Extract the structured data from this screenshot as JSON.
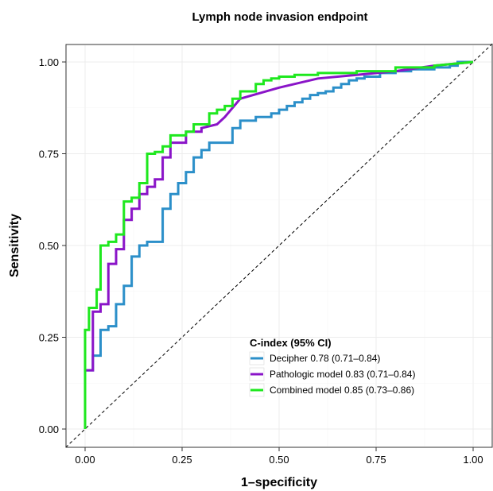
{
  "chart_data": {
    "type": "line",
    "title": "Lymph node invasion endpoint",
    "xlabel": "1–specificity",
    "ylabel": "Sensitivity",
    "xlim": [
      0,
      1
    ],
    "ylim": [
      0,
      1
    ],
    "x_ticks": [
      0,
      0.25,
      0.5,
      0.75,
      1.0
    ],
    "x_tick_labels": [
      "0.00",
      "0.25",
      "0.50",
      "0.75",
      "1.00"
    ],
    "y_ticks": [
      0,
      0.25,
      0.5,
      0.75,
      1.0
    ],
    "y_tick_labels": [
      "0.00",
      "0.25",
      "0.50",
      "0.75",
      "1.00"
    ],
    "grid": true,
    "legend": {
      "title": "C-index (95% CI)",
      "position": "bottom-right"
    },
    "reference_line": {
      "x": [
        0,
        1
      ],
      "y": [
        0,
        1
      ],
      "style": "dashed",
      "color": "#000000"
    },
    "series": [
      {
        "name": "Decipher 0.78 (0.71–0.84)",
        "color": "#2b8fc9",
        "x": [
          0,
          0,
          0.02,
          0.02,
          0.04,
          0.04,
          0.06,
          0.06,
          0.08,
          0.08,
          0.1,
          0.1,
          0.12,
          0.12,
          0.14,
          0.14,
          0.16,
          0.16,
          0.2,
          0.2,
          0.22,
          0.22,
          0.24,
          0.24,
          0.26,
          0.26,
          0.28,
          0.28,
          0.3,
          0.3,
          0.32,
          0.32,
          0.34,
          0.34,
          0.38,
          0.38,
          0.4,
          0.4,
          0.44,
          0.44,
          0.48,
          0.48,
          0.5,
          0.5,
          0.52,
          0.52,
          0.54,
          0.54,
          0.56,
          0.56,
          0.58,
          0.58,
          0.6,
          0.6,
          0.62,
          0.62,
          0.64,
          0.64,
          0.66,
          0.66,
          0.68,
          0.68,
          0.7,
          0.7,
          0.72,
          0.72,
          0.76,
          0.76,
          0.8,
          0.8,
          0.84,
          0.84,
          0.9,
          0.9,
          0.94,
          0.94,
          0.96,
          0.96,
          1.0
        ],
        "y": [
          0,
          0.16,
          0.16,
          0.2,
          0.2,
          0.27,
          0.27,
          0.28,
          0.28,
          0.34,
          0.34,
          0.39,
          0.39,
          0.47,
          0.47,
          0.5,
          0.5,
          0.51,
          0.51,
          0.6,
          0.6,
          0.64,
          0.64,
          0.67,
          0.67,
          0.7,
          0.7,
          0.74,
          0.74,
          0.76,
          0.76,
          0.78,
          0.78,
          0.78,
          0.78,
          0.82,
          0.82,
          0.84,
          0.84,
          0.85,
          0.85,
          0.86,
          0.86,
          0.87,
          0.87,
          0.88,
          0.88,
          0.89,
          0.89,
          0.9,
          0.9,
          0.91,
          0.91,
          0.915,
          0.915,
          0.92,
          0.92,
          0.93,
          0.93,
          0.94,
          0.94,
          0.95,
          0.95,
          0.955,
          0.955,
          0.96,
          0.96,
          0.97,
          0.97,
          0.975,
          0.975,
          0.98,
          0.98,
          0.985,
          0.985,
          0.99,
          0.99,
          1.0,
          1.0
        ]
      },
      {
        "name": "Pathologic model 0.83 (0.71–0.84)",
        "color": "#8a14c8",
        "x": [
          0,
          0,
          0.02,
          0.02,
          0.04,
          0.04,
          0.06,
          0.06,
          0.08,
          0.08,
          0.1,
          0.1,
          0.12,
          0.12,
          0.14,
          0.14,
          0.16,
          0.16,
          0.18,
          0.18,
          0.2,
          0.2,
          0.22,
          0.22,
          0.26,
          0.26,
          0.3,
          0.3,
          0.34,
          0.36,
          0.4,
          0.5,
          0.6,
          0.7,
          0.8,
          0.9,
          1.0
        ],
        "y": [
          0,
          0.16,
          0.16,
          0.32,
          0.32,
          0.34,
          0.34,
          0.45,
          0.45,
          0.49,
          0.49,
          0.57,
          0.57,
          0.6,
          0.6,
          0.64,
          0.64,
          0.66,
          0.66,
          0.68,
          0.68,
          0.74,
          0.74,
          0.78,
          0.78,
          0.81,
          0.81,
          0.82,
          0.83,
          0.85,
          0.9,
          0.93,
          0.955,
          0.965,
          0.975,
          0.99,
          1.0
        ]
      },
      {
        "name": "Combined model 0.85 (0.73–0.86)",
        "color": "#1ee81e",
        "x": [
          0,
          0,
          0.01,
          0.01,
          0.03,
          0.03,
          0.04,
          0.04,
          0.06,
          0.06,
          0.08,
          0.08,
          0.1,
          0.1,
          0.12,
          0.12,
          0.14,
          0.14,
          0.16,
          0.16,
          0.18,
          0.18,
          0.2,
          0.2,
          0.22,
          0.22,
          0.26,
          0.26,
          0.28,
          0.28,
          0.32,
          0.32,
          0.34,
          0.34,
          0.36,
          0.36,
          0.38,
          0.38,
          0.4,
          0.4,
          0.44,
          0.44,
          0.46,
          0.46,
          0.48,
          0.48,
          0.5,
          0.5,
          0.54,
          0.54,
          0.6,
          0.6,
          0.7,
          0.7,
          0.8,
          0.8,
          0.9,
          0.9,
          1.0
        ],
        "y": [
          0,
          0.27,
          0.27,
          0.33,
          0.33,
          0.38,
          0.38,
          0.5,
          0.5,
          0.51,
          0.51,
          0.53,
          0.53,
          0.62,
          0.62,
          0.63,
          0.63,
          0.67,
          0.67,
          0.75,
          0.75,
          0.755,
          0.755,
          0.77,
          0.77,
          0.8,
          0.8,
          0.81,
          0.81,
          0.83,
          0.83,
          0.86,
          0.86,
          0.87,
          0.87,
          0.88,
          0.88,
          0.9,
          0.9,
          0.92,
          0.92,
          0.94,
          0.94,
          0.95,
          0.95,
          0.955,
          0.955,
          0.96,
          0.96,
          0.965,
          0.965,
          0.97,
          0.97,
          0.975,
          0.975,
          0.985,
          0.985,
          0.99,
          1.0
        ]
      }
    ]
  }
}
